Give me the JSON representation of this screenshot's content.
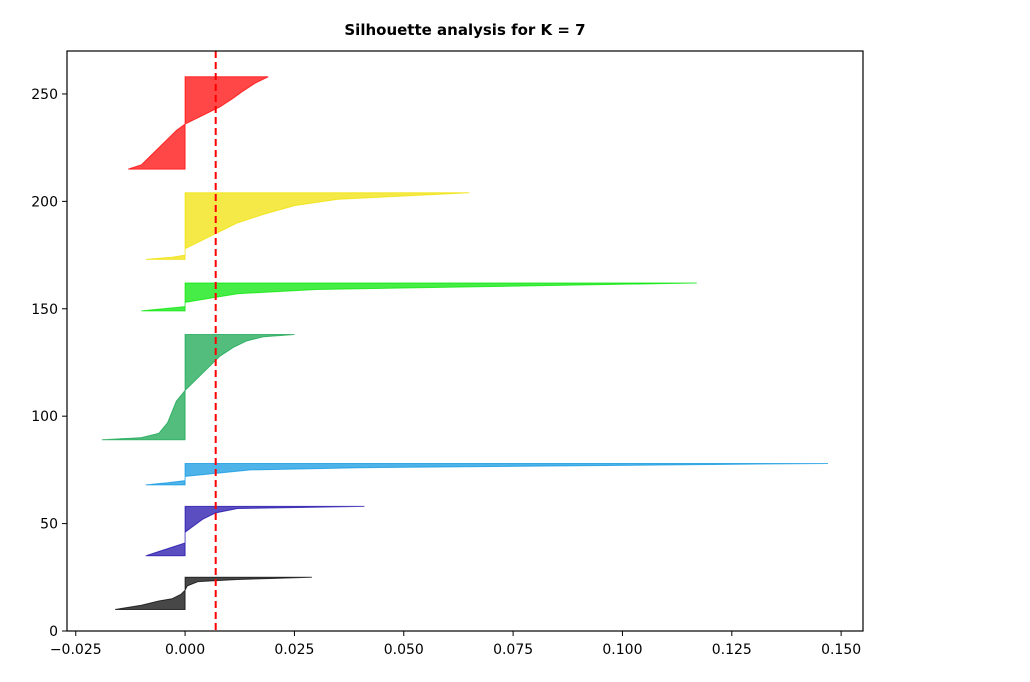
{
  "chart_data": {
    "type": "area",
    "title": "Silhouette analysis for K = 7",
    "xlabel": "",
    "ylabel": "",
    "xlim": [
      -0.027,
      0.155
    ],
    "ylim": [
      0,
      270
    ],
    "x_ticks": [
      "−0.025",
      "0.000",
      "0.025",
      "0.050",
      "0.075",
      "0.100",
      "0.125",
      "0.150"
    ],
    "x_tick_values": [
      -0.025,
      0.0,
      0.025,
      0.05,
      0.075,
      0.1,
      0.125,
      0.15
    ],
    "y_ticks": [
      "0",
      "50",
      "100",
      "150",
      "200",
      "250"
    ],
    "y_tick_values": [
      0,
      50,
      100,
      150,
      200,
      250
    ],
    "grid": false,
    "average_line": {
      "value": 0.007,
      "color": "#ff0000",
      "style": "dashed"
    },
    "series": [
      {
        "color": "#000000",
        "y_start": 10,
        "y_end": 25,
        "points": [
          [
            -0.016,
            10
          ],
          [
            -0.013,
            11
          ],
          [
            -0.01,
            12
          ],
          [
            -0.006,
            14
          ],
          [
            -0.003,
            15
          ],
          [
            -0.001,
            17
          ],
          [
            0,
            19
          ],
          [
            0.0005,
            21
          ],
          [
            0.003,
            23
          ],
          [
            0.012,
            24
          ],
          [
            0.029,
            25
          ]
        ]
      },
      {
        "color": "#1a0aa8",
        "y_start": 35,
        "y_end": 58,
        "points": [
          [
            -0.009,
            35
          ],
          [
            -0.006,
            37
          ],
          [
            -0.003,
            39
          ],
          [
            0,
            41
          ],
          [
            0,
            46
          ],
          [
            0.002,
            49
          ],
          [
            0.004,
            52
          ],
          [
            0.007,
            55
          ],
          [
            0.012,
            57
          ],
          [
            0.041,
            58
          ]
        ]
      },
      {
        "color": "#0a96e0",
        "y_start": 68,
        "y_end": 78,
        "points": [
          [
            -0.009,
            68
          ],
          [
            -0.004,
            69
          ],
          [
            0,
            70
          ],
          [
            0,
            72
          ],
          [
            0.005,
            73
          ],
          [
            0.015,
            75
          ],
          [
            0.04,
            76
          ],
          [
            0.147,
            78
          ]
        ]
      },
      {
        "color": "#11a44c",
        "y_start": 89,
        "y_end": 138,
        "points": [
          [
            -0.019,
            89
          ],
          [
            -0.01,
            90
          ],
          [
            -0.006,
            92
          ],
          [
            -0.004,
            97
          ],
          [
            -0.003,
            102
          ],
          [
            -0.002,
            107
          ],
          [
            0,
            112
          ],
          [
            0.002,
            116
          ],
          [
            0.005,
            122
          ],
          [
            0.008,
            128
          ],
          [
            0.011,
            132
          ],
          [
            0.014,
            135
          ],
          [
            0.018,
            137
          ],
          [
            0.025,
            138
          ]
        ]
      },
      {
        "color": "#00e600",
        "y_start": 149,
        "y_end": 162,
        "points": [
          [
            -0.01,
            149
          ],
          [
            -0.005,
            150
          ],
          [
            0,
            151
          ],
          [
            0,
            153
          ],
          [
            0.006,
            155
          ],
          [
            0.012,
            157
          ],
          [
            0.03,
            159
          ],
          [
            0.06,
            160
          ],
          [
            0.117,
            162
          ]
        ]
      },
      {
        "color": "#f0e000",
        "y_start": 173,
        "y_end": 204,
        "points": [
          [
            -0.009,
            173
          ],
          [
            -0.003,
            174
          ],
          [
            0,
            175
          ],
          [
            0,
            178
          ],
          [
            0.004,
            182
          ],
          [
            0.008,
            186
          ],
          [
            0.012,
            190
          ],
          [
            0.018,
            194
          ],
          [
            0.025,
            198
          ],
          [
            0.035,
            201
          ],
          [
            0.065,
            204
          ]
        ]
      },
      {
        "color": "#ff0000",
        "y_start": 215,
        "y_end": 258,
        "points": [
          [
            -0.013,
            215
          ],
          [
            -0.01,
            217
          ],
          [
            -0.008,
            221
          ],
          [
            -0.006,
            225
          ],
          [
            -0.004,
            229
          ],
          [
            -0.002,
            233
          ],
          [
            0,
            236
          ],
          [
            0.004,
            240
          ],
          [
            0.008,
            244
          ],
          [
            0.011,
            248
          ],
          [
            0.013,
            251
          ],
          [
            0.016,
            255
          ],
          [
            0.019,
            258
          ]
        ]
      }
    ]
  }
}
